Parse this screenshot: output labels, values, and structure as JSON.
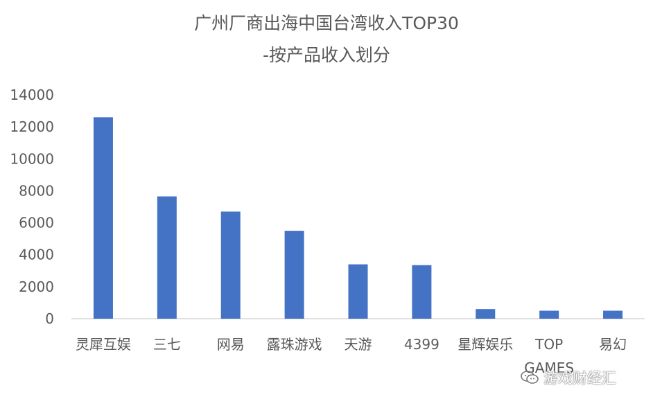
{
  "chart_data": {
    "type": "bar",
    "title": "广州厂商出海中国台湾收入TOP30",
    "subtitle": "-按产品收入划分",
    "categories": [
      "灵犀互娱",
      "三七",
      "网易",
      "露珠游戏",
      "天游",
      "4399",
      "星辉娱乐",
      "TOP GAMES",
      "易幻"
    ],
    "category_lines": [
      [
        "灵犀互娱"
      ],
      [
        "三七"
      ],
      [
        "网易"
      ],
      [
        "露珠游戏"
      ],
      [
        "天游"
      ],
      [
        "4399"
      ],
      [
        "星辉娱乐"
      ],
      [
        "TOP",
        "GAMES"
      ],
      [
        "易幻"
      ]
    ],
    "values": [
      12600,
      7650,
      6700,
      5500,
      3400,
      3350,
      600,
      500,
      500
    ],
    "ylim": [
      0,
      14000
    ],
    "yticks": [
      "0",
      "2000",
      "4000",
      "6000",
      "8000",
      "10000",
      "12000",
      "14000"
    ],
    "bar_color": "#4472C4",
    "grid": false,
    "legend": "none"
  },
  "watermark": {
    "text": "游戏财经汇",
    "icon": "wechat-icon"
  }
}
